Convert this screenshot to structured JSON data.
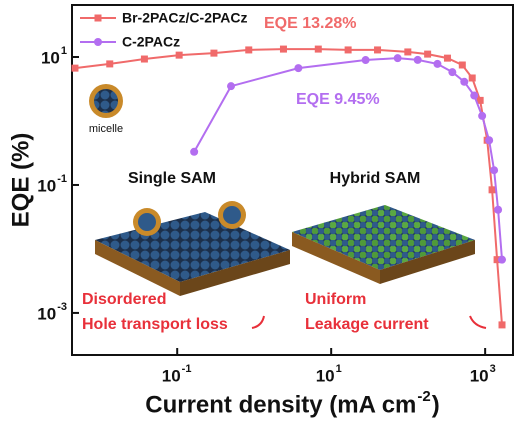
{
  "chart_data": {
    "type": "line",
    "x_label": "Current density (mA cm",
    "x_label_exponent": "-2",
    "x_label_end": ")",
    "y_label": "EQE (%)",
    "xscale": "log",
    "yscale": "log",
    "xlim": [
      0.0043,
      2300
    ],
    "ylim": [
      0.00022,
      65
    ],
    "xticks": [
      {
        "value": 0.1,
        "label": "10",
        "exponent": "-1"
      },
      {
        "value": 10,
        "label": "10",
        "exponent": "1"
      },
      {
        "value": 1000,
        "label": "10",
        "exponent": "3"
      }
    ],
    "yticks": [
      {
        "value": 0.001,
        "label": "10",
        "exponent": "-3"
      },
      {
        "value": 0.1,
        "label": "10",
        "exponent": "-1"
      },
      {
        "value": 10,
        "label": "10",
        "exponent": "1"
      }
    ],
    "series": [
      {
        "name": "Br-2PACz/C-2PACz",
        "color": "#f06a6a",
        "marker": "square",
        "x": [
          0.0047,
          0.0133,
          0.0375,
          0.106,
          0.3,
          0.85,
          2.4,
          6.8,
          16.6,
          40,
          99,
          179,
          324,
          505,
          679,
          861,
          1062,
          1230,
          1429,
          1656
        ],
        "values": [
          6.7,
          7.8,
          9.3,
          10.7,
          11.5,
          12.9,
          13.3,
          13.3,
          12.9,
          12.9,
          12.0,
          11.1,
          9.6,
          7.5,
          4.7,
          2.1,
          0.5,
          0.084,
          0.0068,
          0.00065
        ]
      },
      {
        "name": "C-2PACz",
        "color": "#b36ef0",
        "marker": "circle",
        "x": [
          0.166,
          0.5,
          3.75,
          28,
          73,
          133,
          240,
          375,
          536,
          721,
          914,
          1127,
          1306,
          1472,
          1656
        ],
        "values": [
          0.33,
          3.5,
          6.7,
          8.97,
          9.6,
          9.0,
          7.8,
          5.8,
          4.1,
          2.5,
          1.2,
          0.5,
          0.17,
          0.041,
          0.0068
        ]
      }
    ],
    "annotations": [
      "EQE 13.28%",
      "EQE 9.45%",
      "micelle",
      "Single SAM",
      "Hybrid SAM",
      "Disordered",
      "Hole transport loss",
      "Uniform",
      "Leakage current"
    ]
  }
}
